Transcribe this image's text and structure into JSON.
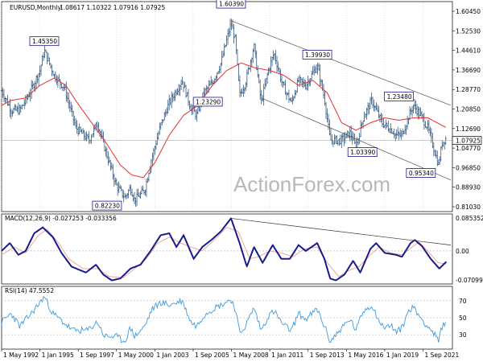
{
  "chart_data": [
    {
      "type": "ohlc",
      "name": "main-price-panel",
      "title": "EURUSD,Monthly",
      "ohlc_header": "1.08617 1.10322 1.07916 1.07925",
      "watermark": "ActionForex.com",
      "ylim": [
        0.8,
        1.63
      ],
      "y_ticks": [
        "1.60450",
        "1.52530",
        "1.44610",
        "1.36690",
        "1.28770",
        "1.20850",
        "1.12690",
        "1.04770",
        "0.96850",
        "0.88930",
        "0.81030"
      ],
      "last_price_label": "1.07925",
      "x_dates": [
        "1 May 1992",
        "1 Jan 1995",
        "1 Sep 1997",
        "1 May 2000",
        "1 Jan 2003",
        "1 Sep 2005",
        "1 May 2008",
        "1 Jan 2011",
        "1 Sep 2013",
        "1 May 2016",
        "1 Jan 2019",
        "1 Sep 2021"
      ],
      "anchors": [
        [
          1992.33,
          1.28
        ],
        [
          1993.0,
          1.2
        ],
        [
          1993.6,
          1.2
        ],
        [
          1994.3,
          1.27
        ],
        [
          1995.0,
          1.36
        ],
        [
          1995.3,
          1.44
        ],
        [
          1996.0,
          1.34
        ],
        [
          1996.7,
          1.29
        ],
        [
          1997.5,
          1.13
        ],
        [
          1998.4,
          1.08
        ],
        [
          1999.0,
          1.15
        ],
        [
          1999.5,
          1.05
        ],
        [
          2000.3,
          0.9
        ],
        [
          2000.9,
          0.85
        ],
        [
          2001.3,
          0.89
        ],
        [
          2001.6,
          0.84
        ],
        [
          2002.3,
          0.88
        ],
        [
          2002.7,
          0.99
        ],
        [
          2003.4,
          1.14
        ],
        [
          2004.0,
          1.23
        ],
        [
          2004.9,
          1.32
        ],
        [
          2005.5,
          1.21
        ],
        [
          2005.9,
          1.18
        ],
        [
          2006.4,
          1.27
        ],
        [
          2007.0,
          1.31
        ],
        [
          2007.6,
          1.39
        ],
        [
          2008.3,
          1.55
        ],
        [
          2008.6,
          1.48
        ],
        [
          2008.9,
          1.26
        ],
        [
          2009.3,
          1.31
        ],
        [
          2009.9,
          1.46
        ],
        [
          2010.4,
          1.23
        ],
        [
          2010.9,
          1.36
        ],
        [
          2011.3,
          1.43
        ],
        [
          2011.9,
          1.3
        ],
        [
          2012.5,
          1.23
        ],
        [
          2013.0,
          1.32
        ],
        [
          2013.5,
          1.3
        ],
        [
          2014.3,
          1.38
        ],
        [
          2014.8,
          1.25
        ],
        [
          2015.2,
          1.08
        ],
        [
          2016.0,
          1.08
        ],
        [
          2016.6,
          1.11
        ],
        [
          2017.0,
          1.05
        ],
        [
          2017.5,
          1.17
        ],
        [
          2018.1,
          1.24
        ],
        [
          2018.8,
          1.15
        ],
        [
          2019.5,
          1.12
        ],
        [
          2019.8,
          1.1
        ],
        [
          2020.2,
          1.1
        ],
        [
          2020.7,
          1.18
        ],
        [
          2021.0,
          1.22
        ],
        [
          2021.5,
          1.18
        ],
        [
          2022.0,
          1.13
        ],
        [
          2022.4,
          1.05
        ],
        [
          2022.75,
          0.98
        ],
        [
          2023.0,
          1.07
        ],
        [
          2023.3,
          1.09
        ]
      ],
      "sma_anchors": [
        [
          1992.33,
          1.22
        ],
        [
          1993.0,
          1.24
        ],
        [
          1994.0,
          1.25
        ],
        [
          1995.0,
          1.3
        ],
        [
          1996.0,
          1.33
        ],
        [
          1996.8,
          1.3
        ],
        [
          1997.6,
          1.23
        ],
        [
          1998.6,
          1.15
        ],
        [
          1999.6,
          1.07
        ],
        [
          2000.6,
          0.98
        ],
        [
          2001.4,
          0.94
        ],
        [
          2002.2,
          0.93
        ],
        [
          2003.0,
          0.99
        ],
        [
          2004.0,
          1.1
        ],
        [
          2005.0,
          1.18
        ],
        [
          2006.0,
          1.22
        ],
        [
          2007.0,
          1.3
        ],
        [
          2008.0,
          1.36
        ],
        [
          2009.0,
          1.39
        ],
        [
          2010.0,
          1.37
        ],
        [
          2011.0,
          1.36
        ],
        [
          2012.0,
          1.34
        ],
        [
          2013.0,
          1.3
        ],
        [
          2014.0,
          1.32
        ],
        [
          2015.0,
          1.27
        ],
        [
          2016.0,
          1.15
        ],
        [
          2017.0,
          1.12
        ],
        [
          2018.0,
          1.15
        ],
        [
          2019.0,
          1.17
        ],
        [
          2020.0,
          1.16
        ],
        [
          2021.0,
          1.17
        ],
        [
          2022.0,
          1.17
        ],
        [
          2023.3,
          1.13
        ]
      ],
      "annotations": [
        {
          "text": "1.60390",
          "x": 2008.3,
          "y": 1.6039
        },
        {
          "text": "1.45350",
          "x": 1995.3,
          "y": 1.4535
        },
        {
          "text": "1.39930",
          "x": 2014.3,
          "y": 1.3993
        },
        {
          "text": "1.23290",
          "x": 2005.9,
          "y": 1.2329
        },
        {
          "text": "1.23480",
          "x": 2021.0,
          "y": 1.2348
        },
        {
          "text": "1.03390",
          "x": 2017.0,
          "y": 1.0339
        },
        {
          "text": "0.95340",
          "x": 2022.75,
          "y": 0.9534
        },
        {
          "text": "0.82230",
          "x": 2000.9,
          "y": 0.8223
        }
      ],
      "channel_upper": [
        [
          2008.3,
          1.56
        ],
        [
          2023.6,
          1.22
        ]
      ],
      "channel_lower": [
        [
          2010.4,
          1.25
        ],
        [
          2023.6,
          0.92
        ]
      ],
      "horizontal_level": 1.07925
    },
    {
      "type": "line",
      "name": "macd-panel",
      "title": "MACD(12,26,9) -0.027253 -0.033356",
      "ylim": [
        -0.08,
        0.09
      ],
      "y_ticks": [
        "0.085352",
        "0.00",
        "-0.07099"
      ],
      "anchors": [
        [
          1992.33,
          0.0
        ],
        [
          1992.9,
          0.02
        ],
        [
          1993.5,
          -0.01
        ],
        [
          1994.0,
          0.0
        ],
        [
          1994.6,
          0.045
        ],
        [
          1995.2,
          0.06
        ],
        [
          1995.9,
          0.035
        ],
        [
          1996.5,
          -0.005
        ],
        [
          1997.2,
          -0.04
        ],
        [
          1998.2,
          -0.055
        ],
        [
          1998.9,
          -0.035
        ],
        [
          1999.4,
          -0.06
        ],
        [
          2000.0,
          -0.075
        ],
        [
          2000.6,
          -0.07
        ],
        [
          2001.3,
          -0.045
        ],
        [
          2002.0,
          -0.035
        ],
        [
          2002.7,
          0.0
        ],
        [
          2003.4,
          0.04
        ],
        [
          2004.0,
          0.045
        ],
        [
          2004.5,
          0.01
        ],
        [
          2005.0,
          0.04
        ],
        [
          2005.7,
          -0.02
        ],
        [
          2006.3,
          0.01
        ],
        [
          2007.0,
          0.03
        ],
        [
          2007.6,
          0.05
        ],
        [
          2008.3,
          0.083
        ],
        [
          2008.9,
          0.02
        ],
        [
          2009.4,
          -0.04
        ],
        [
          2009.9,
          0.01
        ],
        [
          2010.5,
          -0.03
        ],
        [
          2011.2,
          0.015
        ],
        [
          2011.8,
          -0.02
        ],
        [
          2012.4,
          -0.02
        ],
        [
          2013.0,
          0.015
        ],
        [
          2013.5,
          0.0
        ],
        [
          2014.3,
          0.02
        ],
        [
          2014.8,
          -0.02
        ],
        [
          2015.2,
          -0.07
        ],
        [
          2015.6,
          -0.075
        ],
        [
          2016.2,
          -0.06
        ],
        [
          2016.8,
          -0.025
        ],
        [
          2017.3,
          -0.055
        ],
        [
          2018.0,
          0.005
        ],
        [
          2018.4,
          0.02
        ],
        [
          2019.0,
          -0.005
        ],
        [
          2019.8,
          -0.01
        ],
        [
          2020.2,
          -0.015
        ],
        [
          2020.8,
          0.02
        ],
        [
          2021.1,
          0.028
        ],
        [
          2021.6,
          0.012
        ],
        [
          2022.2,
          -0.02
        ],
        [
          2022.8,
          -0.045
        ],
        [
          2023.3,
          -0.027
        ]
      ],
      "signal_anchors": [
        [
          1992.33,
          -0.01
        ],
        [
          1993.2,
          0.01
        ],
        [
          1994.0,
          -0.005
        ],
        [
          1994.9,
          0.04
        ],
        [
          1995.5,
          0.055
        ],
        [
          1996.3,
          0.02
        ],
        [
          1997.0,
          -0.02
        ],
        [
          1998.0,
          -0.045
        ],
        [
          1999.0,
          -0.045
        ],
        [
          1999.8,
          -0.065
        ],
        [
          2000.8,
          -0.068
        ],
        [
          2001.6,
          -0.045
        ],
        [
          2002.4,
          -0.02
        ],
        [
          2003.2,
          0.02
        ],
        [
          2004.0,
          0.035
        ],
        [
          2004.8,
          0.02
        ],
        [
          2005.5,
          0.01
        ],
        [
          2006.3,
          0.0
        ],
        [
          2007.2,
          0.03
        ],
        [
          2008.0,
          0.06
        ],
        [
          2008.8,
          0.05
        ],
        [
          2009.6,
          -0.02
        ],
        [
          2010.2,
          -0.015
        ],
        [
          2011.0,
          0.0
        ],
        [
          2011.8,
          -0.005
        ],
        [
          2012.6,
          -0.015
        ],
        [
          2013.4,
          0.005
        ],
        [
          2014.3,
          0.01
        ],
        [
          2015.0,
          -0.03
        ],
        [
          2015.8,
          -0.065
        ],
        [
          2016.5,
          -0.05
        ],
        [
          2017.2,
          -0.04
        ],
        [
          2018.0,
          -0.01
        ],
        [
          2018.6,
          0.01
        ],
        [
          2019.4,
          -0.005
        ],
        [
          2020.2,
          -0.01
        ],
        [
          2020.9,
          0.01
        ],
        [
          2021.4,
          0.022
        ],
        [
          2022.0,
          0.0
        ],
        [
          2022.7,
          -0.03
        ],
        [
          2023.3,
          -0.033
        ]
      ],
      "trendline": [
        [
          2008.3,
          0.083
        ],
        [
          2023.6,
          0.015
        ]
      ]
    },
    {
      "type": "line",
      "name": "rsi-panel",
      "title": "RSI(14) 47.5552",
      "ylim": [
        15,
        85
      ],
      "y_ticks": [
        "70",
        "50",
        "30"
      ],
      "anchors": [
        [
          1992.33,
          45
        ],
        [
          1993.0,
          55
        ],
        [
          1993.6,
          40
        ],
        [
          1994.4,
          55
        ],
        [
          1995.0,
          68
        ],
        [
          1995.3,
          75
        ],
        [
          1995.9,
          55
        ],
        [
          1996.6,
          45
        ],
        [
          1997.3,
          35
        ],
        [
          1998.3,
          35
        ],
        [
          1999.0,
          45
        ],
        [
          1999.5,
          28
        ],
        [
          2000.3,
          28
        ],
        [
          2000.9,
          22
        ],
        [
          2001.3,
          38
        ],
        [
          2001.6,
          28
        ],
        [
          2002.3,
          40
        ],
        [
          2002.8,
          60
        ],
        [
          2003.4,
          68
        ],
        [
          2004.0,
          65
        ],
        [
          2004.9,
          70
        ],
        [
          2005.5,
          45
        ],
        [
          2005.9,
          40
        ],
        [
          2006.5,
          55
        ],
        [
          2007.2,
          62
        ],
        [
          2007.6,
          65
        ],
        [
          2008.3,
          72
        ],
        [
          2008.6,
          60
        ],
        [
          2008.9,
          32
        ],
        [
          2009.3,
          40
        ],
        [
          2009.9,
          62
        ],
        [
          2010.4,
          35
        ],
        [
          2010.9,
          52
        ],
        [
          2011.3,
          58
        ],
        [
          2011.9,
          42
        ],
        [
          2012.5,
          35
        ],
        [
          2013.0,
          55
        ],
        [
          2013.5,
          48
        ],
        [
          2014.3,
          60
        ],
        [
          2014.8,
          40
        ],
        [
          2015.2,
          22
        ],
        [
          2016.0,
          38
        ],
        [
          2016.6,
          48
        ],
        [
          2017.0,
          35
        ],
        [
          2017.5,
          58
        ],
        [
          2018.1,
          65
        ],
        [
          2018.8,
          40
        ],
        [
          2019.5,
          40
        ],
        [
          2019.8,
          33
        ],
        [
          2020.2,
          38
        ],
        [
          2020.7,
          60
        ],
        [
          2021.0,
          62
        ],
        [
          2021.5,
          50
        ],
        [
          2022.0,
          40
        ],
        [
          2022.4,
          32
        ],
        [
          2022.75,
          22
        ],
        [
          2023.0,
          40
        ],
        [
          2023.3,
          47.5552
        ]
      ]
    }
  ]
}
